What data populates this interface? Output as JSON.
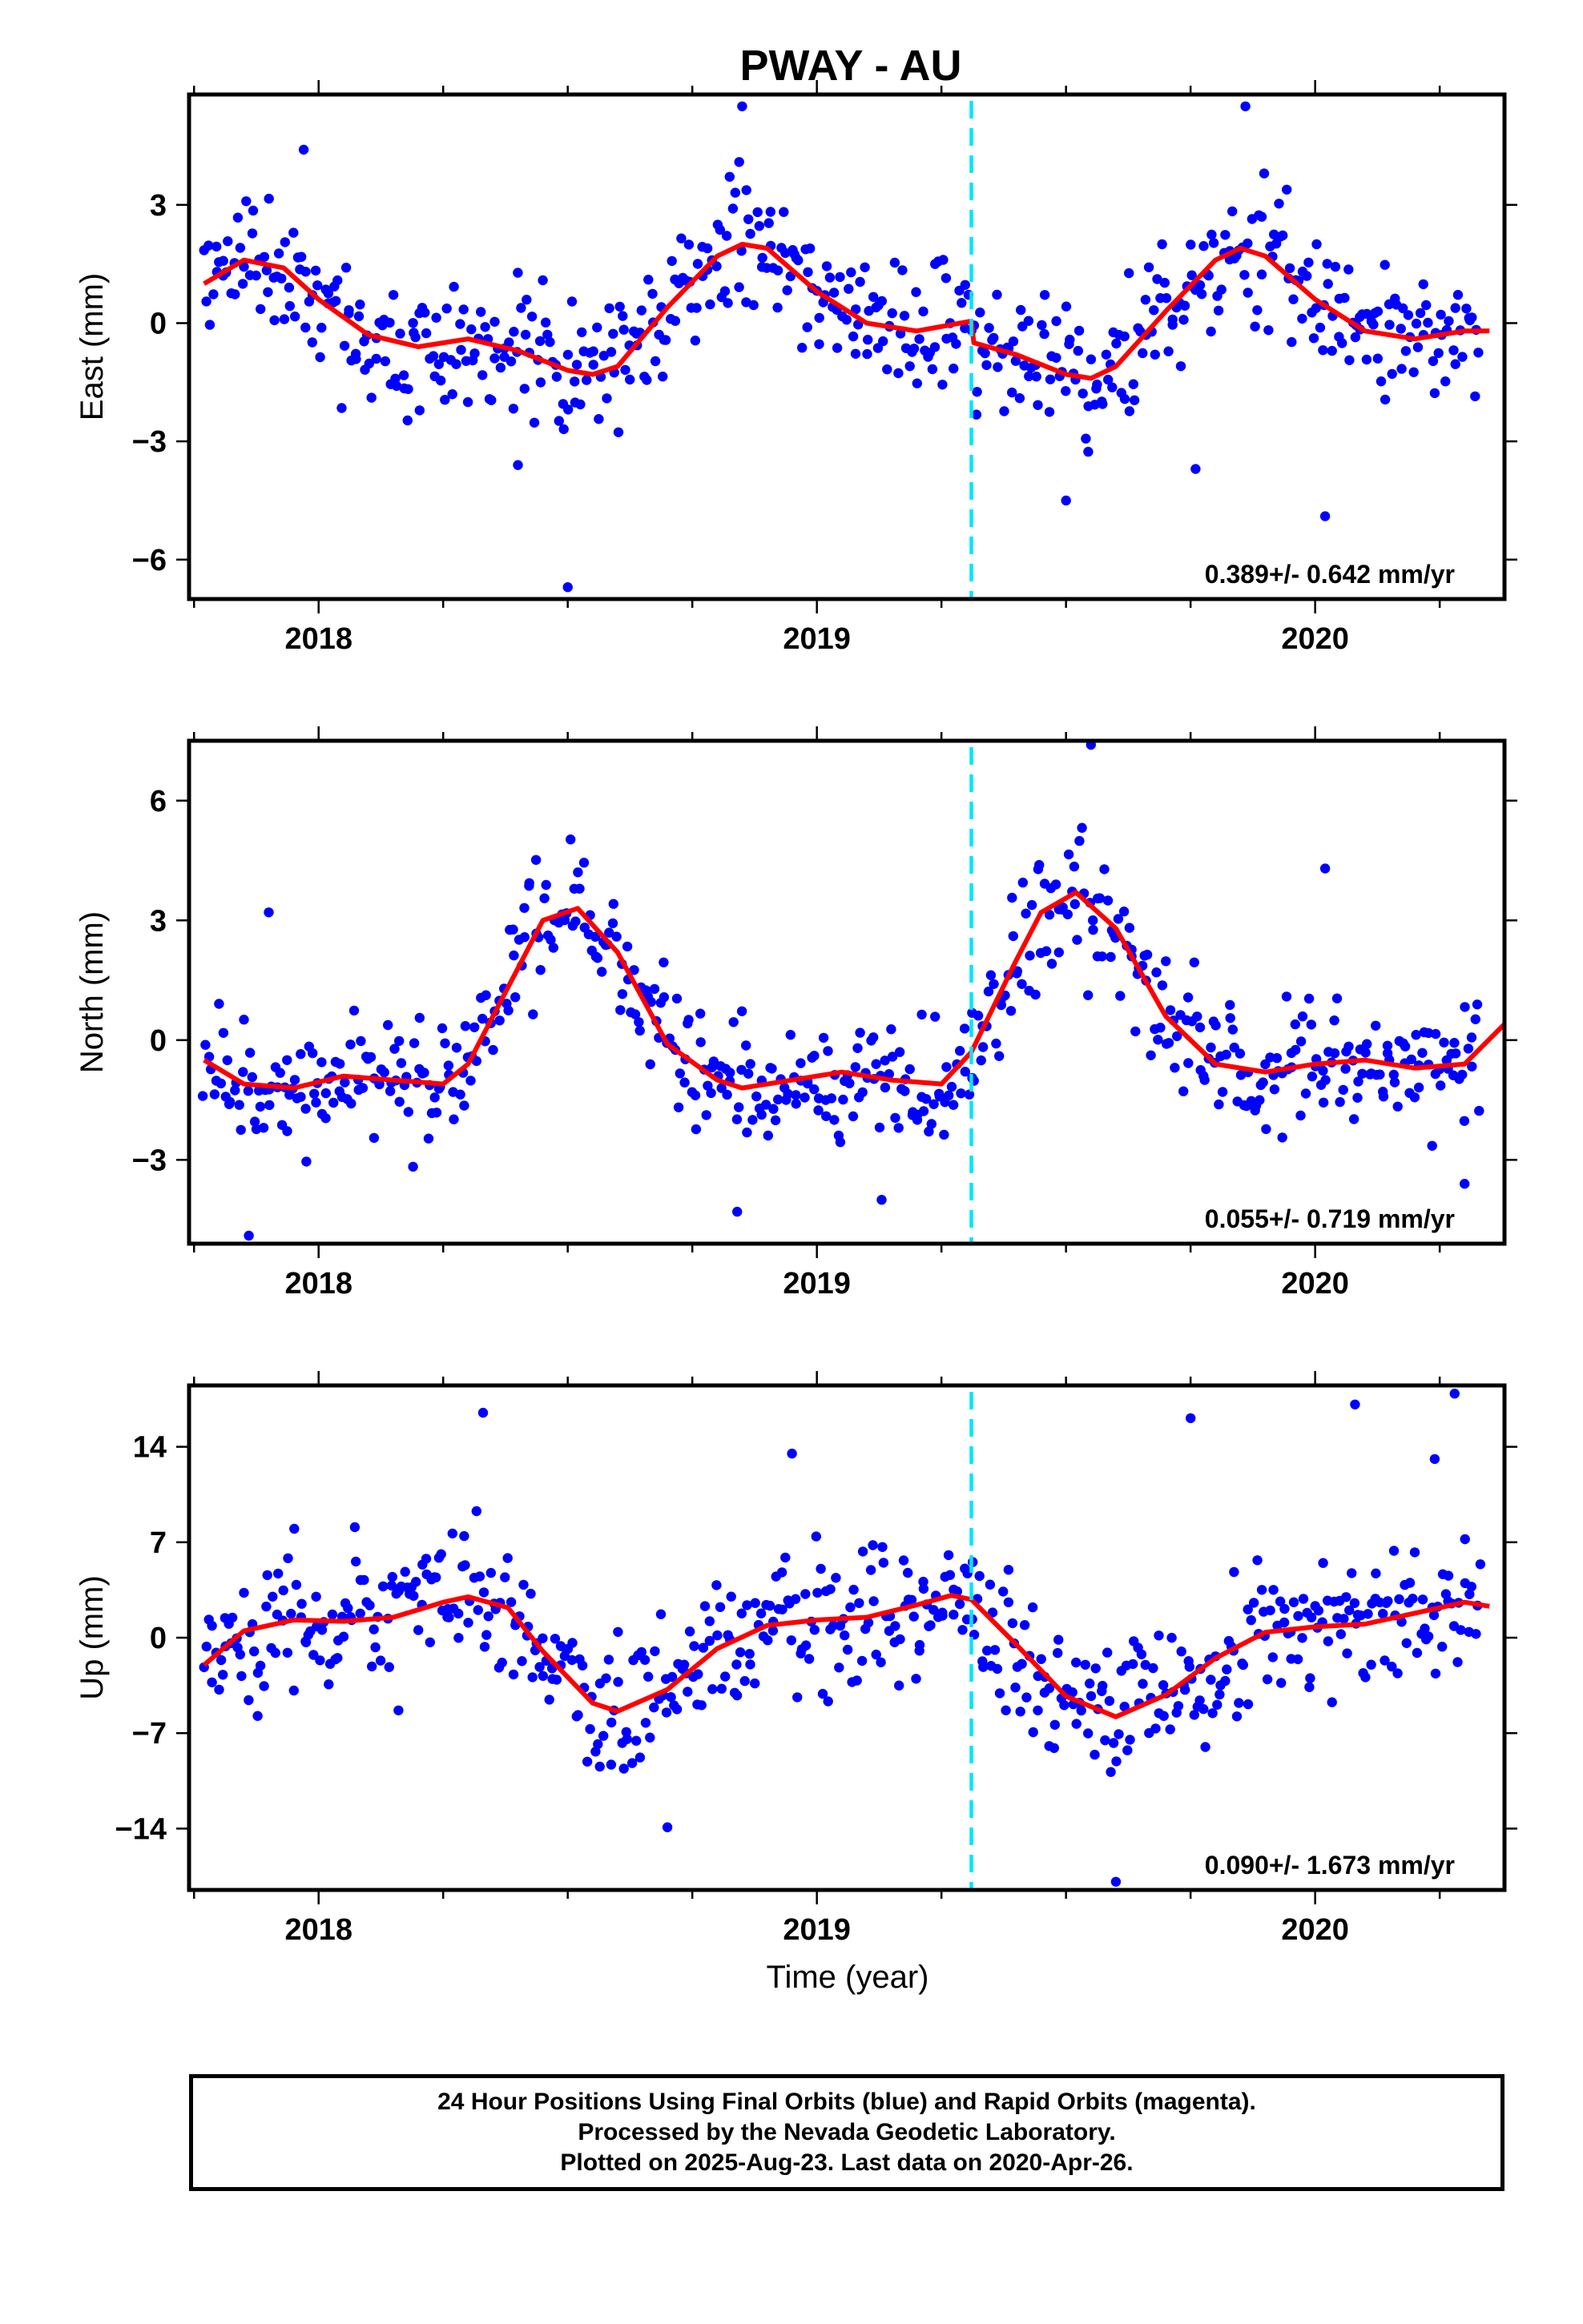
{
  "chart_data": {
    "type": "scatter",
    "title": "PWAY - AU",
    "xlabel": "Time (year)",
    "xlim": [
      2017.74,
      2020.38
    ],
    "x_ticks": [
      2018,
      2019,
      2020
    ],
    "x_tick_labels": [
      "2018",
      "2019",
      "2020"
    ],
    "step_epoch": 2019.31,
    "colors": {
      "points": "#0000ff",
      "fit": "#ff0000",
      "step_line": "#00e5ff",
      "rapid": "#ff00ff"
    },
    "panels": [
      {
        "name": "East",
        "ylabel": "East (mm)",
        "ylim": [
          -7.0,
          5.8
        ],
        "y_ticks": [
          3,
          0,
          -3,
          -6
        ],
        "y_tick_labels": [
          "3",
          "0",
          "−3",
          "−6"
        ],
        "rate": "0.389+/- 0.642 mm/yr",
        "fit_line": {
          "x": [
            2017.77,
            2017.85,
            2017.93,
            2018.0,
            2018.1,
            2018.2,
            2018.3,
            2018.4,
            2018.5,
            2018.55,
            2018.6,
            2018.7,
            2018.8,
            2018.85,
            2018.9,
            2019.0,
            2019.1,
            2019.2,
            2019.31,
            2019.315,
            2019.4,
            2019.5,
            2019.55,
            2019.6,
            2019.7,
            2019.8,
            2019.85,
            2019.9,
            2020.0,
            2020.1,
            2020.2,
            2020.3,
            2020.35
          ],
          "y": [
            1.0,
            1.6,
            1.4,
            0.6,
            -0.3,
            -0.6,
            -0.4,
            -0.7,
            -1.2,
            -1.3,
            -1.1,
            0.4,
            1.7,
            2.0,
            1.9,
            0.8,
            0.0,
            -0.2,
            0.05,
            -0.5,
            -0.8,
            -1.3,
            -1.4,
            -1.1,
            0.3,
            1.6,
            1.9,
            1.7,
            0.6,
            -0.2,
            -0.4,
            -0.2,
            -0.2
          ]
        },
        "scatter": {
          "seed": 11,
          "n": 560,
          "noise": 1.2,
          "outliers": [
            [
              2018.5,
              -6.7
            ],
            [
              2020.02,
              -4.9
            ],
            [
              2019.5,
              -4.5
            ],
            [
              2019.76,
              -3.7
            ],
            [
              2018.4,
              -3.6
            ],
            [
              2018.85,
              5.5
            ],
            [
              2019.86,
              5.5
            ],
            [
              2017.97,
              4.4
            ]
          ]
        }
      },
      {
        "name": "North",
        "ylabel": "North (mm)",
        "ylim": [
          -5.1,
          7.5
        ],
        "y_ticks": [
          6,
          3,
          0,
          -3
        ],
        "y_tick_labels": [
          "6",
          "3",
          "0",
          "−3"
        ],
        "rate": "0.055+/- 0.719 mm/yr",
        "fit_line": {
          "x": [
            2017.77,
            2017.85,
            2017.95,
            2018.05,
            2018.15,
            2018.25,
            2018.3,
            2018.4,
            2018.45,
            2018.52,
            2018.6,
            2018.7,
            2018.8,
            2018.85,
            2018.95,
            2019.05,
            2019.15,
            2019.25,
            2019.31,
            2019.4,
            2019.45,
            2019.52,
            2019.6,
            2019.7,
            2019.8,
            2019.9,
            2020.0,
            2020.1,
            2020.2,
            2020.3,
            2020.38
          ],
          "y": [
            -0.5,
            -1.1,
            -1.2,
            -0.9,
            -1.0,
            -1.1,
            -0.6,
            1.8,
            3.0,
            3.3,
            2.2,
            -0.1,
            -1.0,
            -1.2,
            -1.0,
            -0.8,
            -1.0,
            -1.1,
            -0.3,
            2.0,
            3.2,
            3.7,
            2.8,
            0.6,
            -0.6,
            -0.8,
            -0.6,
            -0.5,
            -0.7,
            -0.6,
            0.4
          ]
        },
        "scatter": {
          "seed": 23,
          "n": 560,
          "noise": 1.1,
          "outliers": [
            [
              2019.55,
              7.4
            ],
            [
              2017.86,
              -4.9
            ],
            [
              2018.84,
              -4.3
            ],
            [
              2020.3,
              -3.6
            ],
            [
              2017.9,
              3.2
            ],
            [
              2020.02,
              4.3
            ],
            [
              2019.13,
              -4.0
            ]
          ]
        }
      },
      {
        "name": "Up",
        "ylabel": "Up (mm)",
        "ylim": [
          -18.5,
          18.5
        ],
        "y_ticks": [
          14,
          7,
          0,
          -7,
          -14
        ],
        "y_tick_labels": [
          "14",
          "7",
          "0",
          "−7",
          "−14"
        ],
        "rate": "0.090+/- 1.673 mm/yr",
        "fit_line": {
          "x": [
            2017.77,
            2017.85,
            2017.95,
            2018.05,
            2018.15,
            2018.25,
            2018.3,
            2018.38,
            2018.45,
            2018.55,
            2018.6,
            2018.7,
            2018.8,
            2018.9,
            2019.0,
            2019.1,
            2019.2,
            2019.27,
            2019.31,
            2019.4,
            2019.5,
            2019.6,
            2019.7,
            2019.8,
            2019.9,
            2020.0,
            2020.1,
            2020.2,
            2020.3,
            2020.35
          ],
          "y": [
            -2.0,
            0.5,
            1.3,
            1.2,
            1.5,
            2.6,
            3.0,
            2.2,
            -1.0,
            -4.8,
            -5.4,
            -3.8,
            -0.8,
            0.9,
            1.3,
            1.5,
            2.4,
            3.1,
            2.8,
            -0.5,
            -4.3,
            -5.8,
            -4.2,
            -1.5,
            0.4,
            0.8,
            1.0,
            1.8,
            2.6,
            2.3
          ]
        },
        "scatter": {
          "seed": 37,
          "n": 560,
          "noise": 3.6,
          "outliers": [
            [
              2020.28,
              17.9
            ],
            [
              2020.08,
              17.1
            ],
            [
              2019.75,
              16.1
            ],
            [
              2018.33,
              16.5
            ],
            [
              2019.6,
              -17.9
            ],
            [
              2018.7,
              -13.9
            ],
            [
              2020.24,
              13.1
            ],
            [
              2018.95,
              13.5
            ]
          ]
        }
      }
    ],
    "caption": [
      "24 Hour Positions Using Final Orbits (blue) and Rapid Orbits (magenta).",
      "Processed by the Nevada Geodetic Laboratory.",
      "Plotted on 2025-Aug-23. Last data on 2020-Apr-26."
    ]
  }
}
